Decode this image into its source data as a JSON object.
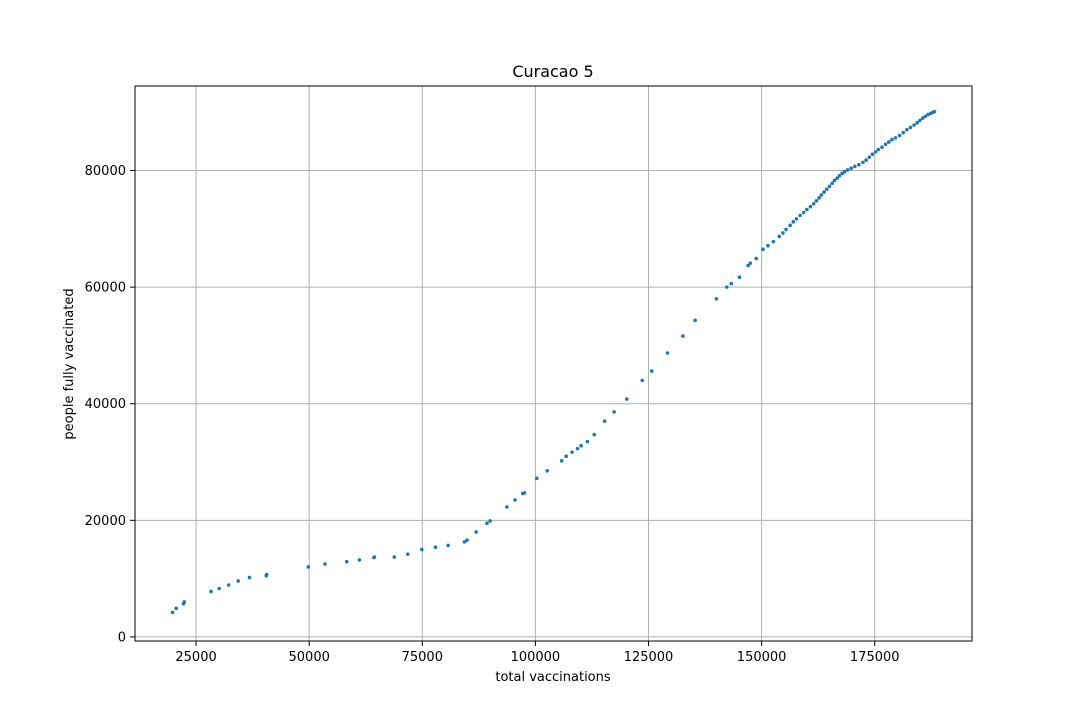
{
  "chart_data": {
    "type": "scatter",
    "title": "Curacao 5",
    "xlabel": "total vaccinations",
    "ylabel": "people fully vaccinated",
    "xlim": [
      11500,
      196500
    ],
    "ylim": [
      -700,
      94500
    ],
    "xticks": [
      25000,
      50000,
      75000,
      100000,
      125000,
      150000,
      175000
    ],
    "yticks": [
      0,
      20000,
      40000,
      60000,
      80000
    ],
    "grid": true,
    "point_color": "#1f77b4",
    "series": [
      {
        "x": [
          19800,
          20600,
          22200,
          22400,
          28300,
          30100,
          32200,
          34300,
          36800,
          40500,
          40600,
          49800,
          53500,
          58300,
          61100,
          64300,
          64400,
          68800,
          71800,
          74900,
          77900,
          80700,
          84300,
          84900,
          86900,
          89300,
          90000,
          93700,
          95500,
          97200,
          97600,
          100300,
          102600,
          105800,
          106800,
          108100,
          109300,
          110100,
          111500,
          113000,
          115300,
          117400,
          120200,
          123600,
          125700,
          129200,
          132600,
          135300,
          140000,
          142300,
          143300,
          145100,
          147000,
          147500,
          148800,
          150300,
          151400,
          152600,
          153900,
          154700,
          155400,
          156300,
          157000,
          157700,
          158500,
          159300,
          160000,
          160800,
          161500,
          162100,
          162700,
          163200,
          163800,
          164400,
          165000,
          165600,
          166100,
          166700,
          167200,
          167800,
          168300,
          169000,
          169800,
          170600,
          171500,
          172400,
          173100,
          173800,
          174500,
          175200,
          175800,
          176600,
          177400,
          178100,
          178800,
          179600,
          180500,
          181300,
          182100,
          182900,
          183700,
          184400,
          185000,
          185600,
          186200,
          186800,
          187400,
          187900,
          188200
        ],
        "y": [
          4200,
          4900,
          5700,
          6000,
          7800,
          8300,
          8900,
          9600,
          10200,
          10500,
          10700,
          12000,
          12500,
          12900,
          13200,
          13600,
          13700,
          13700,
          14200,
          15000,
          15400,
          15700,
          16300,
          16600,
          18000,
          19500,
          19900,
          22300,
          23500,
          24600,
          24700,
          27200,
          28500,
          30200,
          31000,
          31700,
          32300,
          32800,
          33500,
          34700,
          37000,
          38600,
          40800,
          44000,
          45600,
          48700,
          51600,
          54300,
          58000,
          60000,
          60600,
          61700,
          63700,
          64100,
          64900,
          66500,
          67100,
          67800,
          68700,
          69300,
          69900,
          70600,
          71200,
          71700,
          72300,
          72800,
          73300,
          73800,
          74300,
          74800,
          75300,
          75800,
          76300,
          76800,
          77300,
          77800,
          78300,
          78700,
          79100,
          79500,
          79800,
          80100,
          80400,
          80700,
          81000,
          81400,
          81800,
          82300,
          82800,
          83200,
          83600,
          84000,
          84500,
          84900,
          85300,
          85600,
          86000,
          86500,
          87000,
          87400,
          87800,
          88200,
          88600,
          89000,
          89300,
          89600,
          89800,
          90000,
          90100
        ]
      }
    ]
  }
}
